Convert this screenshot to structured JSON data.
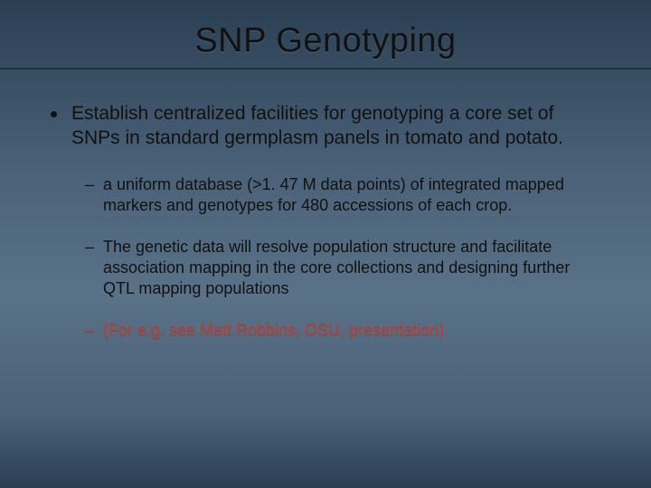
{
  "slide": {
    "title": "SNP Genotyping",
    "background_gradient": [
      "#2a3f52",
      "#4a6178",
      "#5a7288",
      "#4a6178",
      "#2a3f52"
    ],
    "title_fontsize": 38,
    "title_color": "#111111",
    "divider_color": "rgba(0,0,0,0.35)",
    "body": {
      "level1": {
        "text": "Establish centralized facilities for genotyping a core set of SNPs in standard germplasm panels in tomato and potato.",
        "fontsize": 21,
        "color": "#111111",
        "marker": "disc"
      },
      "level2": [
        {
          "text": "a uniform database (>1. 47 M data points) of integrated mapped markers and genotypes for 480 accessions of each crop.",
          "fontsize": 18,
          "color": "#111111",
          "marker": "dash",
          "emphasis": "none"
        },
        {
          "text": "The genetic data will resolve population structure and facilitate association mapping in the core collections and designing further QTL mapping populations",
          "fontsize": 18,
          "color": "#111111",
          "marker": "dash",
          "emphasis": "none"
        },
        {
          "text": "(For e.g. see Matt Robbins, OSU, presentation)",
          "fontsize": 18,
          "color": "#c23a2e",
          "marker": "dash",
          "emphasis": "red"
        }
      ]
    }
  }
}
